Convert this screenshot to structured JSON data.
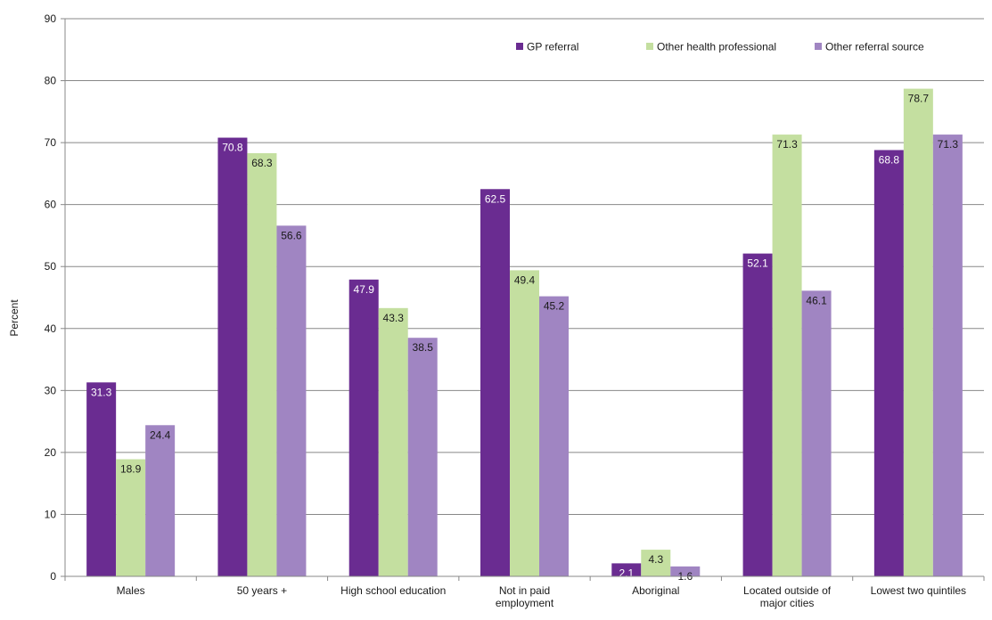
{
  "chart_data": {
    "type": "bar",
    "categories": [
      [
        "Males"
      ],
      [
        "50 years +"
      ],
      [
        "High school education"
      ],
      [
        "Not in paid",
        "employment"
      ],
      [
        "Aboriginal"
      ],
      [
        "Located outside of",
        "major cities"
      ],
      [
        "Lowest two  quintiles"
      ]
    ],
    "series": [
      {
        "name": "GP referral",
        "color": "#6a2c91",
        "label_color": "#ffffff",
        "values": [
          31.3,
          70.8,
          47.9,
          62.5,
          2.1,
          52.1,
          68.8
        ],
        "labels": [
          "31.3",
          "70.8",
          "47.9",
          "62.5",
          "2.1",
          "52.1",
          "68.8"
        ]
      },
      {
        "name": "Other health professional",
        "color": "#c4dfa0",
        "label_color": "#1a1a1a",
        "values": [
          18.9,
          68.3,
          43.3,
          49.4,
          4.3,
          71.3,
          78.7
        ],
        "labels": [
          "18.9",
          "68.3",
          "43.3",
          "49.4",
          "4.3",
          "71.3",
          "78.7"
        ]
      },
      {
        "name": "Other referral source",
        "color": "#a085c2",
        "label_color": "#1a1a1a",
        "values": [
          24.4,
          56.6,
          38.5,
          45.2,
          1.6,
          46.1,
          71.3
        ],
        "labels": [
          "24.4",
          "56.6",
          "38.5",
          "45.2",
          "1.6",
          "46.1",
          "71.3"
        ]
      }
    ],
    "title": "",
    "xlabel": "",
    "ylabel": "Percent",
    "ylim": [
      0,
      90
    ],
    "yticks": [
      "0",
      "10",
      "20",
      "30",
      "40",
      "50",
      "60",
      "70",
      "80",
      "90"
    ],
    "grid": true,
    "legend_position": "top-right"
  }
}
